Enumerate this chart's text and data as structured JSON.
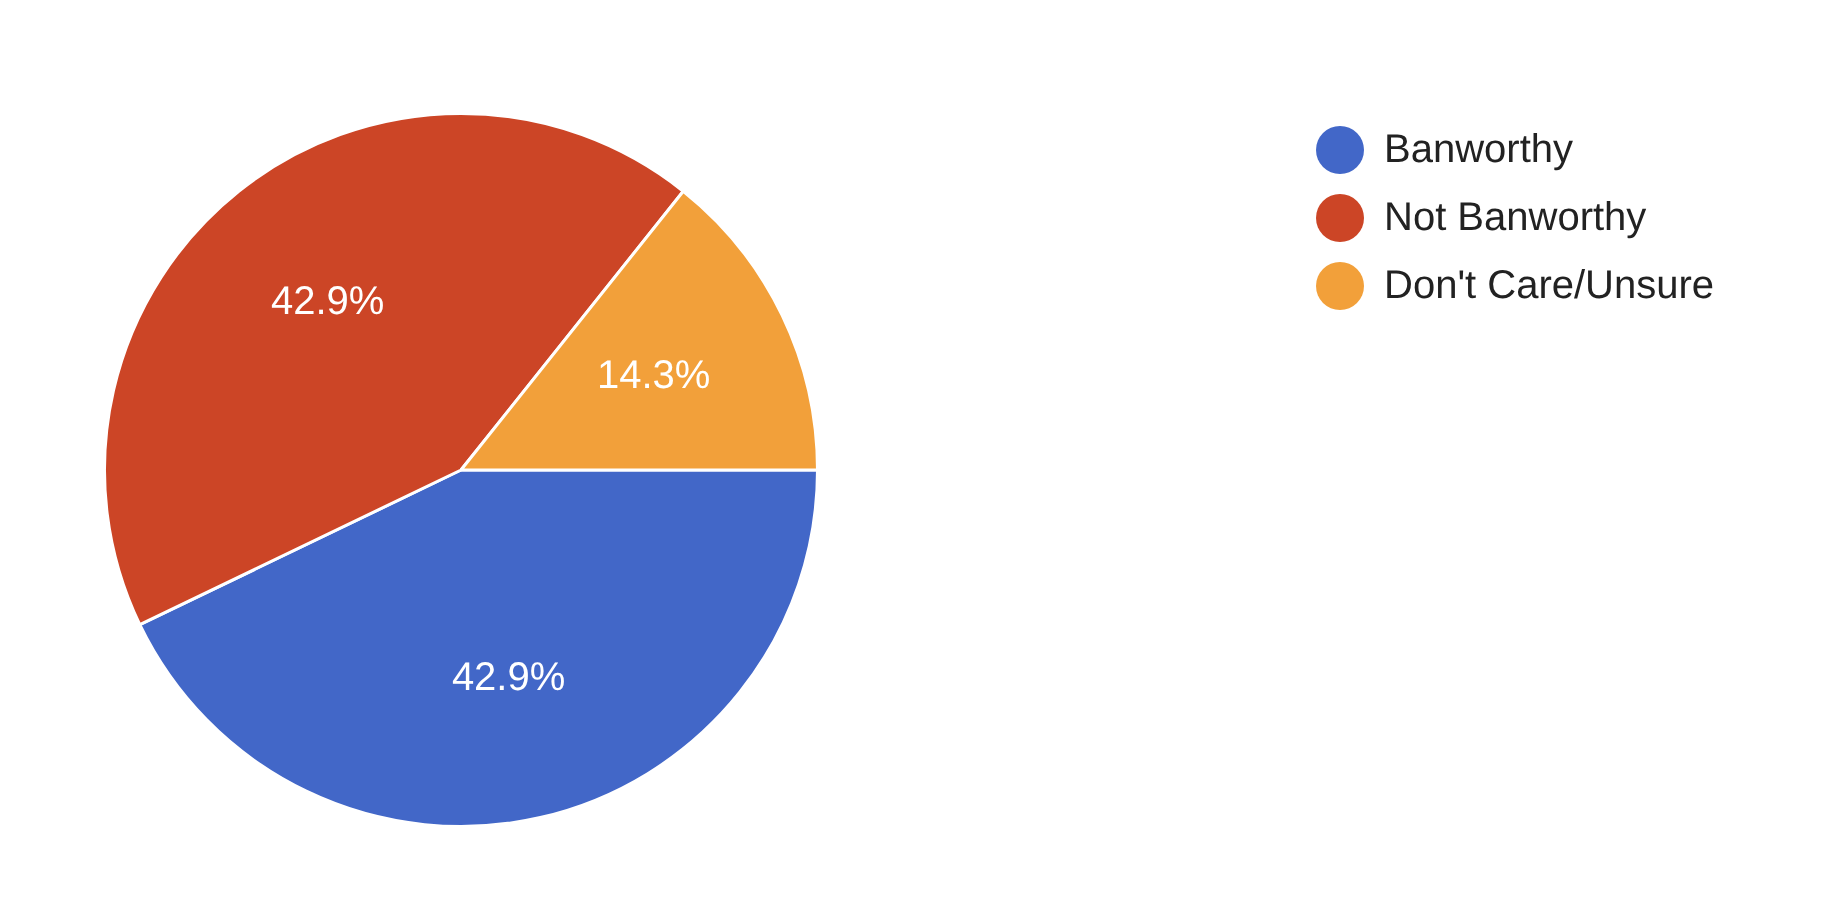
{
  "chart_data": {
    "type": "pie",
    "categories": [
      "Banworthy",
      "Not Banworthy",
      "Don't Care/Unsure"
    ],
    "values": [
      42.9,
      42.9,
      14.3
    ],
    "value_labels": [
      "42.9%",
      "42.9%",
      "14.3%"
    ],
    "colors": [
      "#4267c8",
      "#cc4526",
      "#f2a03a"
    ],
    "legend": "top right"
  }
}
